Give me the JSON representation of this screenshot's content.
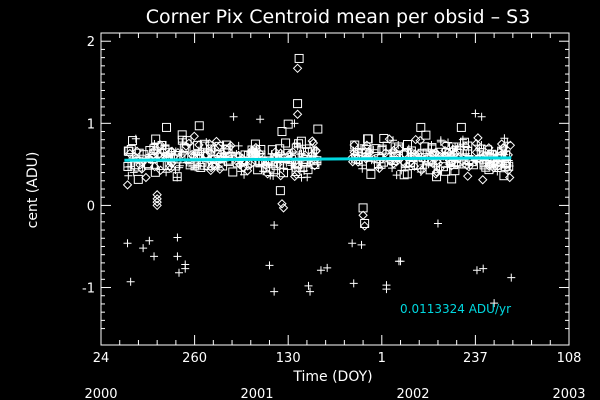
{
  "chart_data": {
    "type": "scatter",
    "title": "Corner Pix Centroid mean per obsid – S3",
    "xlabel": "Time (DOY)",
    "ylabel": "cent (ADU)",
    "x_tick_labels": [
      "24",
      "260",
      "130",
      "1",
      "237",
      "108"
    ],
    "x_range_years": [
      2000.0,
      2003.0
    ],
    "year_labels": [
      "2000",
      "2001",
      "2002",
      "2003"
    ],
    "ylim": [
      -1.7,
      2.1
    ],
    "y_ticks": [
      -1,
      0,
      1,
      2
    ],
    "colors": {
      "background": "#000000",
      "points": "#ffffff",
      "fit": "#00d8e0"
    },
    "series": [
      {
        "marker": "plus",
        "points": [
          [
            2000.17,
            -0.46
          ],
          [
            2000.19,
            -0.93
          ],
          [
            2000.27,
            -0.52
          ],
          [
            2000.31,
            -0.43
          ],
          [
            2000.34,
            -0.62
          ],
          [
            2000.49,
            -0.39
          ],
          [
            2000.49,
            -0.62
          ],
          [
            2000.5,
            -0.82
          ],
          [
            2000.54,
            -0.77
          ],
          [
            2000.54,
            -0.72
          ],
          [
            2001.08,
            -0.73
          ],
          [
            2001.11,
            -1.05
          ],
          [
            2001.11,
            -0.24
          ],
          [
            2001.06,
            0.52
          ],
          [
            2001.33,
            -0.98
          ],
          [
            2001.34,
            -1.05
          ],
          [
            2001.41,
            -0.79
          ],
          [
            2001.45,
            -0.76
          ],
          [
            2001.61,
            -0.46
          ],
          [
            2001.62,
            -0.95
          ],
          [
            2001.67,
            -0.48
          ],
          [
            2001.83,
            -0.97
          ],
          [
            2001.83,
            -1.02
          ],
          [
            2001.91,
            -0.68
          ],
          [
            2001.92,
            -0.68
          ],
          [
            2002.16,
            -0.22
          ],
          [
            2002.41,
            -0.79
          ],
          [
            2002.45,
            -0.77
          ],
          [
            2002.52,
            -1.19
          ],
          [
            2002.63,
            -0.88
          ],
          [
            2001.24,
            1.0
          ],
          [
            2001.02,
            1.05
          ],
          [
            2000.85,
            1.08
          ],
          [
            2002.44,
            1.08
          ],
          [
            2002.4,
            1.12
          ]
        ]
      },
      {
        "marker": "square",
        "points": [
          [
            2001.27,
            1.79
          ],
          [
            2001.26,
            1.24
          ],
          [
            2001.68,
            -0.03
          ],
          [
            2001.69,
            -0.22
          ],
          [
            2001.15,
            0.18
          ],
          [
            2001.39,
            0.93
          ],
          [
            2000.63,
            0.97
          ],
          [
            2001.2,
            0.99
          ],
          [
            2002.05,
            0.95
          ],
          [
            2002.31,
            0.95
          ],
          [
            2000.42,
            0.95
          ],
          [
            2001.16,
            0.9
          ]
        ]
      },
      {
        "marker": "diamond",
        "points": [
          [
            2001.26,
            1.67
          ],
          [
            2001.26,
            1.11
          ],
          [
            2001.68,
            -0.12
          ],
          [
            2001.69,
            -0.25
          ],
          [
            2000.36,
            0.13
          ],
          [
            2000.36,
            0.08
          ],
          [
            2000.36,
            0.04
          ],
          [
            2000.36,
            0.0
          ],
          [
            2001.16,
            0.02
          ],
          [
            2001.17,
            -0.03
          ],
          [
            2000.17,
            0.25
          ],
          [
            2002.62,
            0.34
          ]
        ]
      }
    ],
    "cluster": {
      "x_segments": [
        [
          2000.17,
          2001.39
        ],
        [
          2001.61,
          2002.63
        ]
      ],
      "center": 0.58,
      "spread": 0.32
    },
    "fit_line": {
      "x": [
        2000.15,
        2002.63
      ],
      "y": [
        0.55,
        0.58
      ],
      "annotation": "0.0113324 ADU/yr"
    }
  }
}
